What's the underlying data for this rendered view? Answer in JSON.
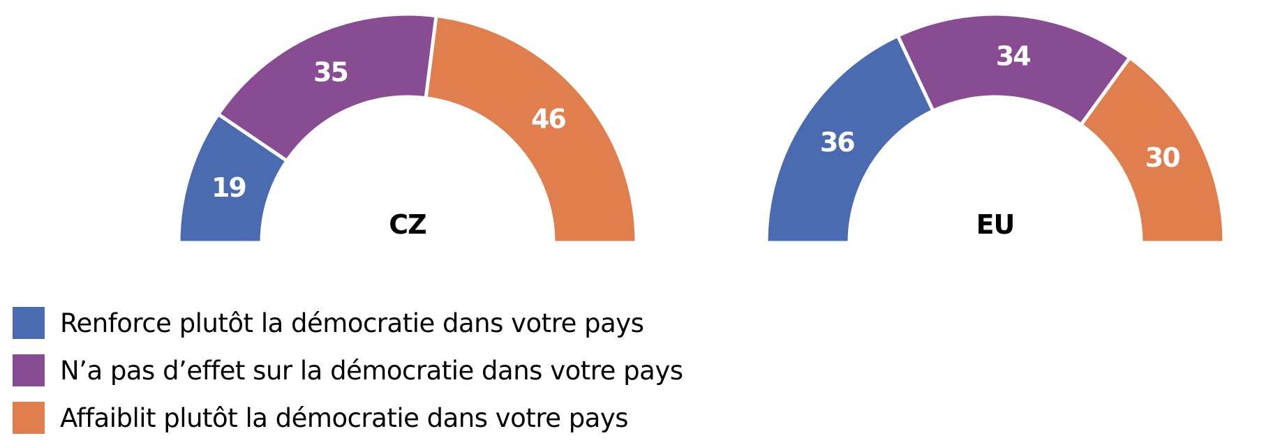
{
  "chart_data": [
    {
      "type": "pie",
      "variant": "semi-donut",
      "center_label": "CZ",
      "categories": [
        "Renforce plutôt la démocratie dans votre pays",
        "N’a pas d’effet sur la démocratie dans votre pays",
        "Affaiblit plutôt la démocratie dans votre pays"
      ],
      "values": [
        19,
        35,
        46
      ],
      "value_labels": [
        "19",
        "35",
        "46"
      ]
    },
    {
      "type": "pie",
      "variant": "semi-donut",
      "center_label": "EU",
      "categories": [
        "Renforce plutôt la démocratie dans votre pays",
        "N’a pas d’effet sur la démocratie dans votre pays",
        "Affaiblit plutôt la démocratie dans votre pays"
      ],
      "values": [
        36,
        34,
        30
      ],
      "value_labels": [
        "36",
        "34",
        "30"
      ]
    }
  ],
  "legend": {
    "placement": "bottom-left",
    "items": [
      {
        "label": "Renforce plutôt la démocratie dans votre pays",
        "color": "#4A6BAF"
      },
      {
        "label": "N’a pas d’effet sur la démocratie dans votre pays",
        "color": "#874C92"
      },
      {
        "label": "Affaiblit plutôt la démocratie dans votre pays",
        "color": "#E07E4E"
      }
    ]
  }
}
